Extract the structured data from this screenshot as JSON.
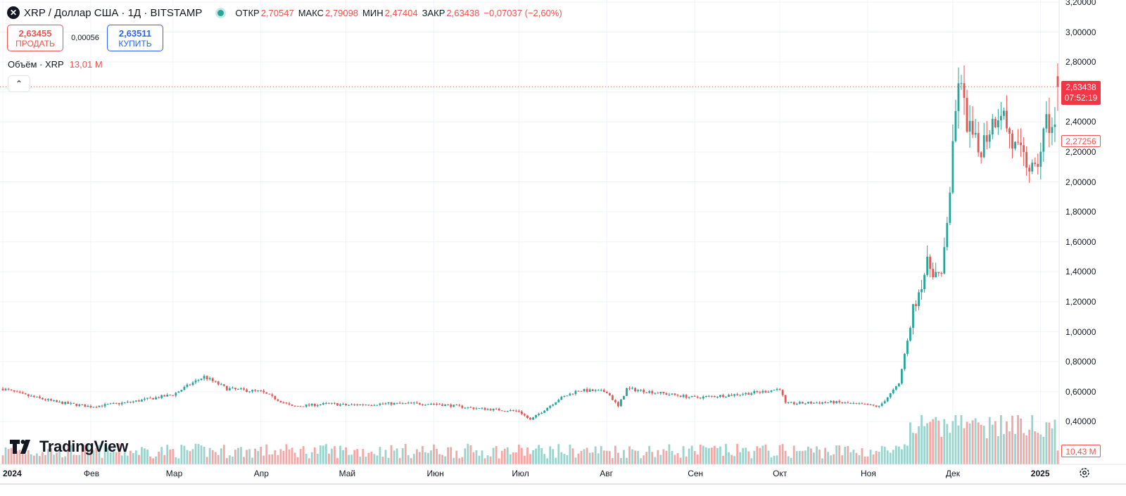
{
  "header": {
    "symbol_icon": "close-x-icon",
    "title": "XRP / Доллар США · 1Д · BITSTAMP",
    "open_label": "ОТКР",
    "open_value": "2,70547",
    "high_label": "МАКС",
    "high_value": "2,79098",
    "low_label": "МИН",
    "low_value": "2,47404",
    "close_label": "ЗАКР",
    "close_value": "2,63438",
    "change": "−0,07037 (−2,60%)"
  },
  "trade": {
    "sell_price": "2,63455",
    "sell_label": "ПРОДАТЬ",
    "spread": "0,00056",
    "buy_price": "2,63511",
    "buy_label": "КУПИТЬ"
  },
  "volume_legend": {
    "label": "Объём · XRP",
    "value": "13,01 M"
  },
  "logo_text": "TradingView",
  "price_tags": {
    "last_price": "2,63438",
    "countdown": "07:52:19",
    "secondary": "2,27256",
    "volume": "10,43 M"
  },
  "colors": {
    "up": "#26a69a",
    "down": "#ef5350",
    "up_vol": "#9dd3cd",
    "down_vol": "#f5a7a6"
  },
  "chart_data": {
    "type": "candlestick",
    "title": "XRP / Доллар США · 1Д · BITSTAMP",
    "y_ticks": [
      "3,20000",
      "3,00000",
      "2,80000",
      "2,60000",
      "2,40000",
      "2,20000",
      "2,00000",
      "1,80000",
      "1,60000",
      "1,40000",
      "1,20000",
      "1,00000",
      "0,80000",
      "0,60000",
      "0,40000"
    ],
    "y_tick_values": [
      3.2,
      3.0,
      2.8,
      2.6,
      2.4,
      2.2,
      2.0,
      1.8,
      1.6,
      1.4,
      1.2,
      1.0,
      0.8,
      0.6,
      0.4
    ],
    "ylim": [
      0.3,
      3.2
    ],
    "x_ticks": [
      "2024",
      "Фев",
      "Мар",
      "Апр",
      "Май",
      "Июн",
      "Июл",
      "Авг",
      "Сен",
      "Окт",
      "Ноя",
      "Дек",
      "2025"
    ],
    "x_tick_dates": [
      "2024-01-01",
      "2024-02-01",
      "2024-03-01",
      "2024-04-01",
      "2024-05-01",
      "2024-06-01",
      "2024-07-01",
      "2024-08-01",
      "2024-09-01",
      "2024-10-01",
      "2024-11-01",
      "2024-12-01",
      "2025-01-01"
    ],
    "date_range": [
      "2024-01-01",
      "2025-01-07"
    ],
    "grid": true,
    "price_keypoints": [
      [
        "2024-01-01",
        0.62
      ],
      [
        "2024-01-08",
        0.58
      ],
      [
        "2024-01-20",
        0.53
      ],
      [
        "2024-02-01",
        0.5
      ],
      [
        "2024-02-15",
        0.53
      ],
      [
        "2024-03-01",
        0.58
      ],
      [
        "2024-03-08",
        0.66
      ],
      [
        "2024-03-12",
        0.7
      ],
      [
        "2024-03-20",
        0.62
      ],
      [
        "2024-04-01",
        0.6
      ],
      [
        "2024-04-12",
        0.5
      ],
      [
        "2024-04-25",
        0.52
      ],
      [
        "2024-05-01",
        0.51
      ],
      [
        "2024-05-15",
        0.52
      ],
      [
        "2024-06-01",
        0.52
      ],
      [
        "2024-06-15",
        0.49
      ],
      [
        "2024-07-01",
        0.47
      ],
      [
        "2024-07-05",
        0.41
      ],
      [
        "2024-07-15",
        0.55
      ],
      [
        "2024-07-22",
        0.61
      ],
      [
        "2024-08-01",
        0.6
      ],
      [
        "2024-08-05",
        0.5
      ],
      [
        "2024-08-08",
        0.62
      ],
      [
        "2024-08-20",
        0.59
      ],
      [
        "2024-09-01",
        0.56
      ],
      [
        "2024-09-15",
        0.58
      ],
      [
        "2024-09-25",
        0.6
      ],
      [
        "2024-10-01",
        0.62
      ],
      [
        "2024-10-03",
        0.52
      ],
      [
        "2024-10-20",
        0.53
      ],
      [
        "2024-11-01",
        0.51
      ],
      [
        "2024-11-05",
        0.5
      ],
      [
        "2024-11-12",
        0.65
      ],
      [
        "2024-11-17",
        1.15
      ],
      [
        "2024-11-22",
        1.45
      ],
      [
        "2024-11-27",
        1.35
      ],
      [
        "2024-11-30",
        1.95
      ],
      [
        "2024-12-03",
        2.7
      ],
      [
        "2024-12-06",
        2.4
      ],
      [
        "2024-12-10",
        2.2
      ],
      [
        "2024-12-15",
        2.4
      ],
      [
        "2024-12-18",
        2.5
      ],
      [
        "2024-12-22",
        2.25
      ],
      [
        "2024-12-30",
        2.05
      ],
      [
        "2025-01-03",
        2.4
      ],
      [
        "2025-01-06",
        2.35
      ],
      [
        "2025-01-07",
        2.63
      ]
    ],
    "last_candle": {
      "open": 2.70547,
      "high": 2.79098,
      "low": 2.47404,
      "close": 2.63438
    },
    "volume_unit": "M",
    "last_volume": 10.43
  }
}
